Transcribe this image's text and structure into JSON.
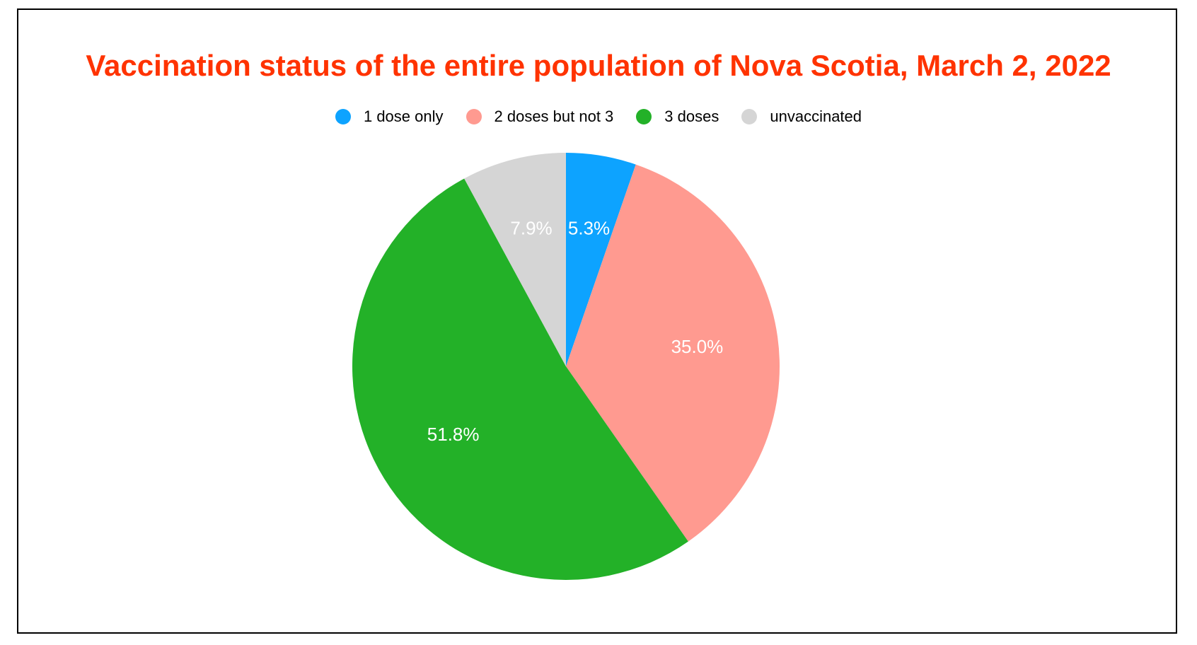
{
  "chart_data": {
    "type": "pie",
    "title": "Vaccination status of the entire population of Nova Scotia, March 2, 2022",
    "legend_position": "top",
    "slices": [
      {
        "name": "1 dose only",
        "value": 5.3,
        "label": "5.3%",
        "color": "#0da3ff"
      },
      {
        "name": "2 doses but not 3",
        "value": 35.0,
        "label": "35.0%",
        "color": "#ff9a90"
      },
      {
        "name": "3 doses",
        "value": 51.8,
        "label": "51.8%",
        "color": "#23b128"
      },
      {
        "name": "unvaccinated",
        "value": 7.9,
        "label": "7.9%",
        "color": "#d5d5d5"
      }
    ]
  }
}
